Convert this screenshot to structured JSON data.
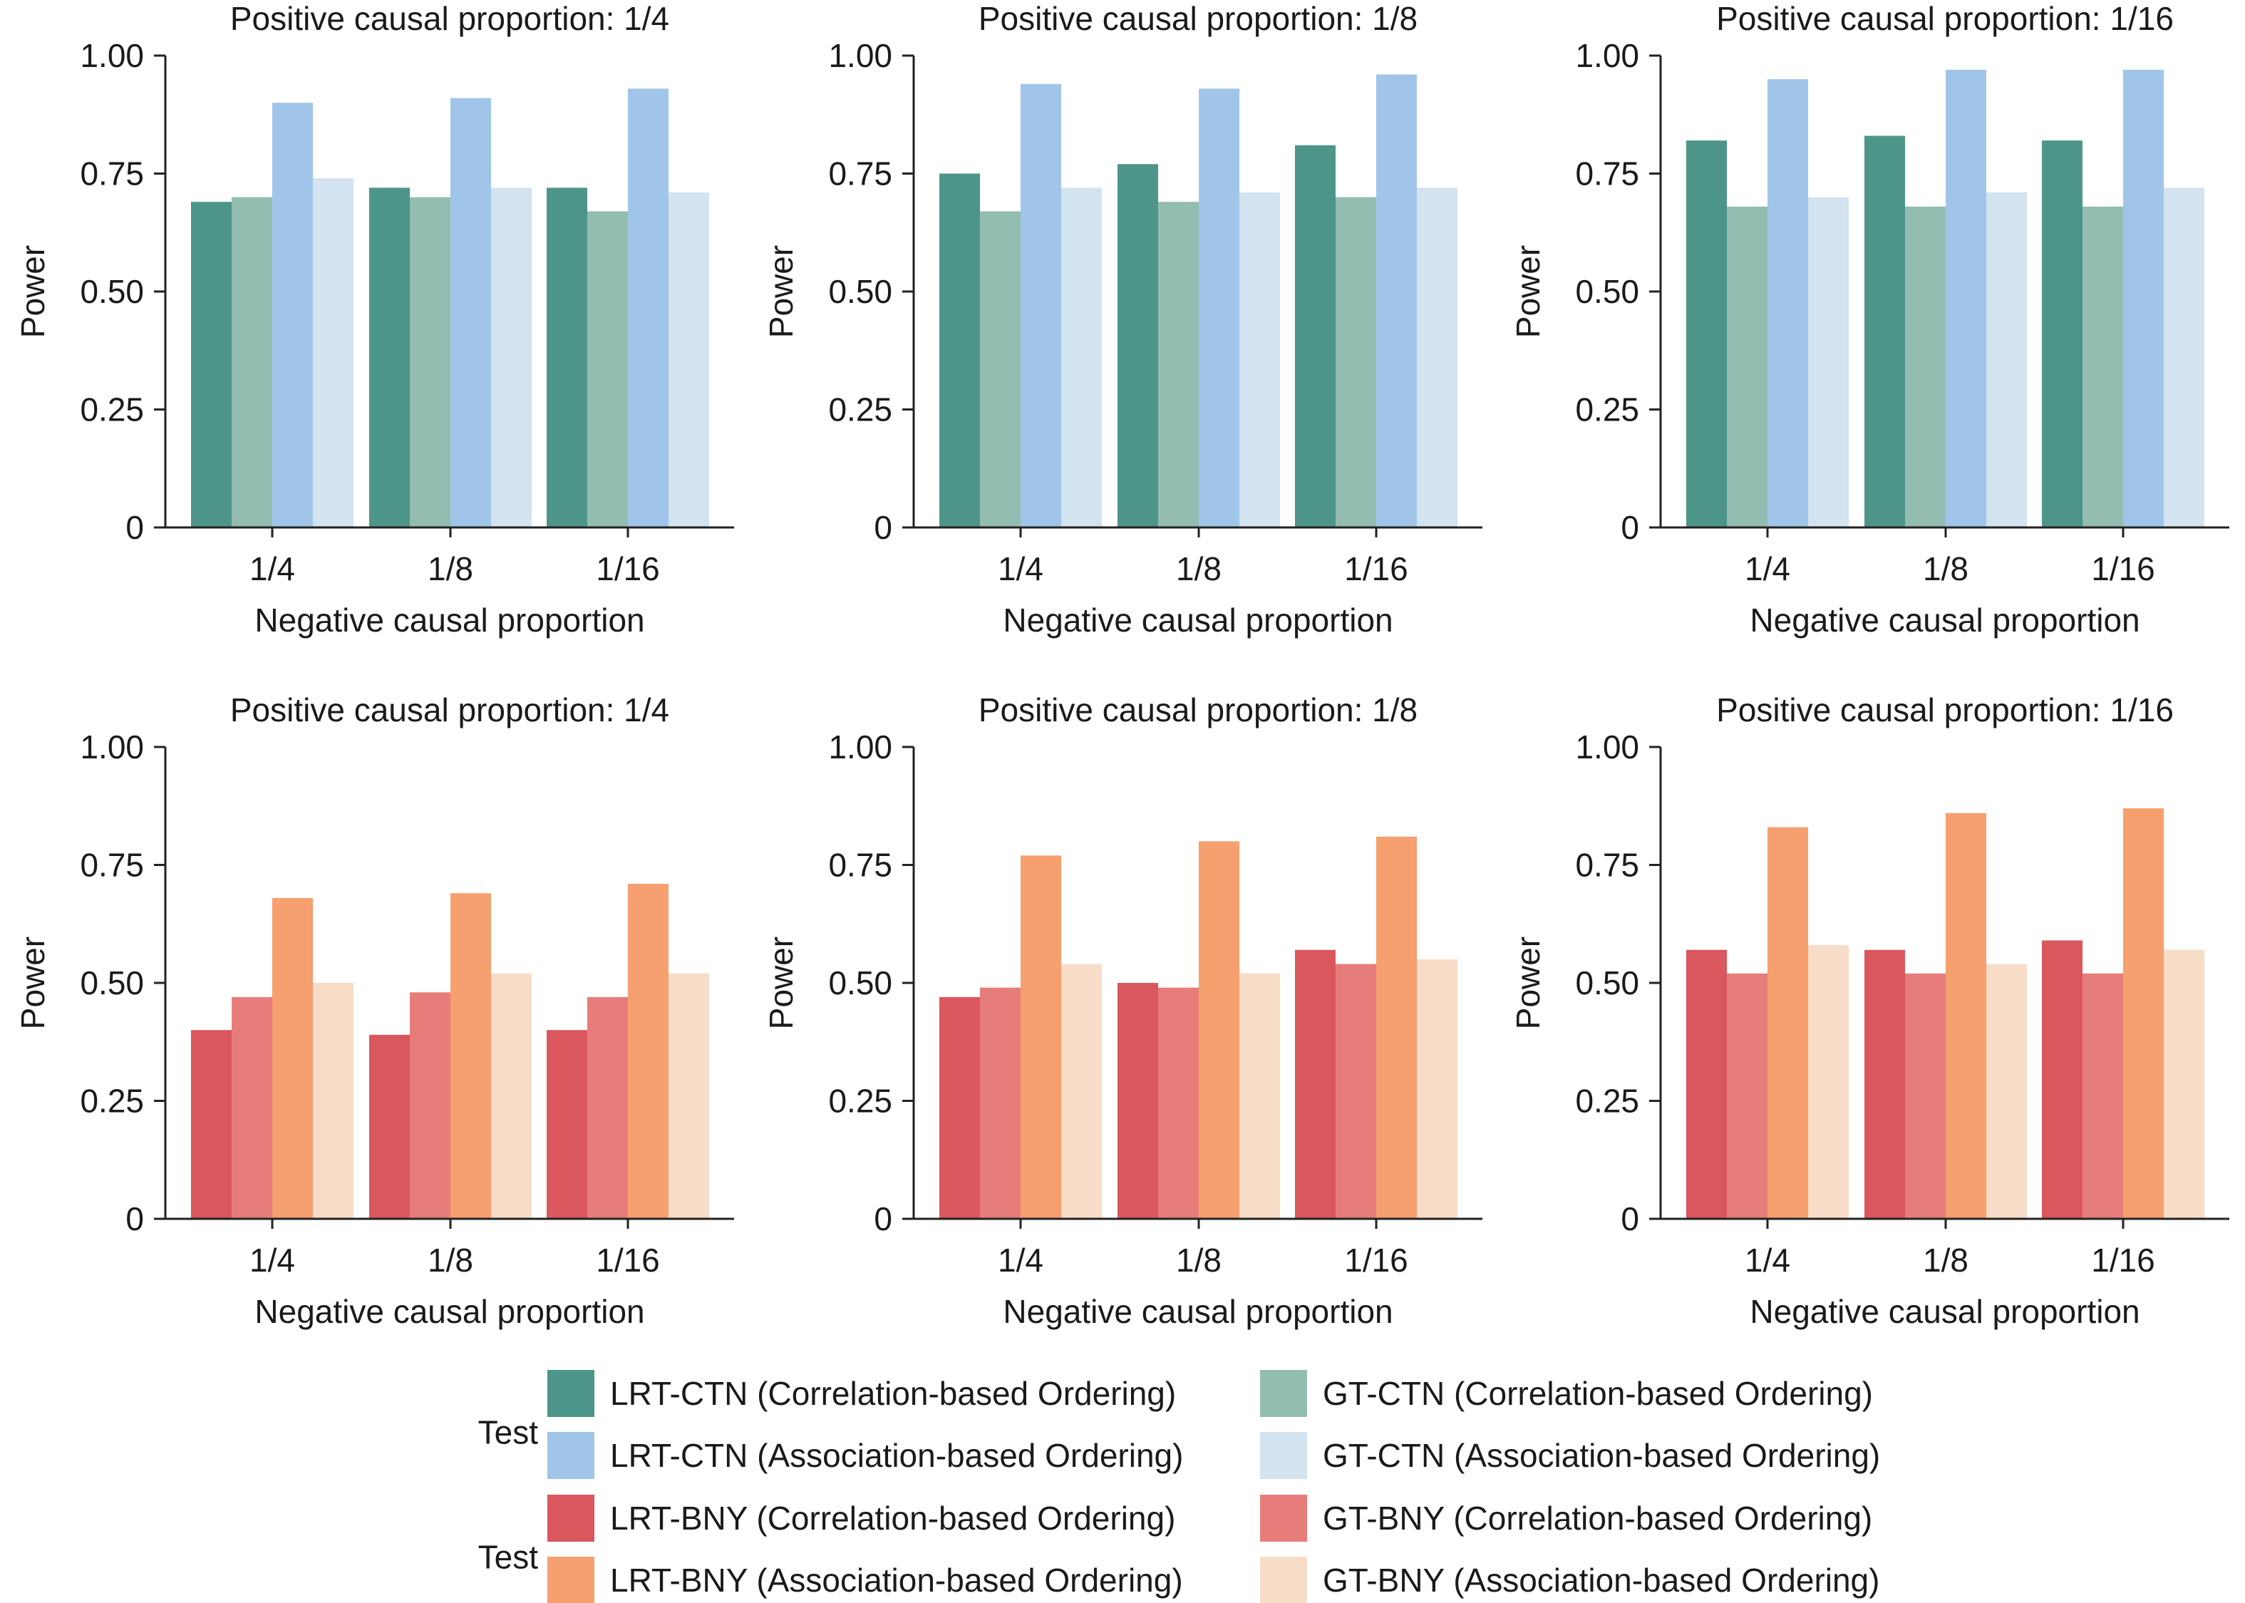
{
  "chart_data": [
    {
      "type": "bar",
      "title": "Positive causal proportion: 1/4",
      "xlabel": "Negative causal proportion",
      "ylabel": "Power",
      "ylim": [
        0,
        1
      ],
      "yticks": [
        "0",
        "0.25",
        "0.50",
        "0.75",
        "1.00"
      ],
      "categories": [
        "1/4",
        "1/8",
        "1/16"
      ],
      "series": [
        {
          "name": "LRT-CTN (Correlation-based Ordering)",
          "color": "#4d9588",
          "values": [
            0.69,
            0.72,
            0.72
          ]
        },
        {
          "name": "GT-CTN (Correlation-based Ordering)",
          "color": "#94bdb1",
          "values": [
            0.7,
            0.7,
            0.67
          ]
        },
        {
          "name": "LRT-CTN (Association-based Ordering)",
          "color": "#a0c5e9",
          "values": [
            0.9,
            0.91,
            0.93
          ]
        },
        {
          "name": "GT-CTN (Association-based Ordering)",
          "color": "#d3e3ef",
          "values": [
            0.74,
            0.72,
            0.71
          ]
        }
      ]
    },
    {
      "type": "bar",
      "title": "Positive causal proportion: 1/8",
      "xlabel": "Negative causal proportion",
      "ylabel": "Power",
      "ylim": [
        0,
        1
      ],
      "yticks": [
        "0",
        "0.25",
        "0.50",
        "0.75",
        "1.00"
      ],
      "categories": [
        "1/4",
        "1/8",
        "1/16"
      ],
      "series": [
        {
          "name": "LRT-CTN (Correlation-based Ordering)",
          "color": "#4d9588",
          "values": [
            0.75,
            0.77,
            0.81
          ]
        },
        {
          "name": "GT-CTN (Correlation-based Ordering)",
          "color": "#94bdb1",
          "values": [
            0.67,
            0.69,
            0.7
          ]
        },
        {
          "name": "LRT-CTN (Association-based Ordering)",
          "color": "#a0c5e9",
          "values": [
            0.94,
            0.93,
            0.96
          ]
        },
        {
          "name": "GT-CTN (Association-based Ordering)",
          "color": "#d3e3ef",
          "values": [
            0.72,
            0.71,
            0.72
          ]
        }
      ]
    },
    {
      "type": "bar",
      "title": "Positive causal proportion: 1/16",
      "xlabel": "Negative causal proportion",
      "ylabel": "Power",
      "ylim": [
        0,
        1
      ],
      "yticks": [
        "0",
        "0.25",
        "0.50",
        "0.75",
        "1.00"
      ],
      "categories": [
        "1/4",
        "1/8",
        "1/16"
      ],
      "series": [
        {
          "name": "LRT-CTN (Correlation-based Ordering)",
          "color": "#4d9588",
          "values": [
            0.82,
            0.83,
            0.82
          ]
        },
        {
          "name": "GT-CTN (Correlation-based Ordering)",
          "color": "#94bdb1",
          "values": [
            0.68,
            0.68,
            0.68
          ]
        },
        {
          "name": "LRT-CTN (Association-based Ordering)",
          "color": "#a0c5e9",
          "values": [
            0.95,
            0.97,
            0.97
          ]
        },
        {
          "name": "GT-CTN (Association-based Ordering)",
          "color": "#d3e3ef",
          "values": [
            0.7,
            0.71,
            0.72
          ]
        }
      ]
    },
    {
      "type": "bar",
      "title": "Positive causal proportion: 1/4",
      "xlabel": "Negative causal proportion",
      "ylabel": "Power",
      "ylim": [
        0,
        1
      ],
      "yticks": [
        "0",
        "0.25",
        "0.50",
        "0.75",
        "1.00"
      ],
      "categories": [
        "1/4",
        "1/8",
        "1/16"
      ],
      "series": [
        {
          "name": "LRT-BNY (Correlation-based Ordering)",
          "color": "#d9575d",
          "values": [
            0.4,
            0.39,
            0.4
          ]
        },
        {
          "name": "GT-BNY (Correlation-based Ordering)",
          "color": "#e77d7b",
          "values": [
            0.47,
            0.48,
            0.47
          ]
        },
        {
          "name": "LRT-BNY (Association-based Ordering)",
          "color": "#f69f6f",
          "values": [
            0.68,
            0.69,
            0.71
          ]
        },
        {
          "name": "GT-BNY (Association-based Ordering)",
          "color": "#f7dcc8",
          "values": [
            0.5,
            0.52,
            0.52
          ]
        }
      ]
    },
    {
      "type": "bar",
      "title": "Positive causal proportion: 1/8",
      "xlabel": "Negative causal proportion",
      "ylabel": "Power",
      "ylim": [
        0,
        1
      ],
      "yticks": [
        "0",
        "0.25",
        "0.50",
        "0.75",
        "1.00"
      ],
      "categories": [
        "1/4",
        "1/8",
        "1/16"
      ],
      "series": [
        {
          "name": "LRT-BNY (Correlation-based Ordering)",
          "color": "#d9575d",
          "values": [
            0.47,
            0.5,
            0.57
          ]
        },
        {
          "name": "GT-BNY (Correlation-based Ordering)",
          "color": "#e77d7b",
          "values": [
            0.49,
            0.49,
            0.54
          ]
        },
        {
          "name": "LRT-BNY (Association-based Ordering)",
          "color": "#f69f6f",
          "values": [
            0.77,
            0.8,
            0.81
          ]
        },
        {
          "name": "GT-BNY (Association-based Ordering)",
          "color": "#f7dcc8",
          "values": [
            0.54,
            0.52,
            0.55
          ]
        }
      ]
    },
    {
      "type": "bar",
      "title": "Positive causal proportion: 1/16",
      "xlabel": "Negative causal proportion",
      "ylabel": "Power",
      "ylim": [
        0,
        1
      ],
      "yticks": [
        "0",
        "0.25",
        "0.50",
        "0.75",
        "1.00"
      ],
      "categories": [
        "1/4",
        "1/8",
        "1/16"
      ],
      "series": [
        {
          "name": "LRT-BNY (Correlation-based Ordering)",
          "color": "#d9575d",
          "values": [
            0.57,
            0.57,
            0.59
          ]
        },
        {
          "name": "GT-BNY (Correlation-based Ordering)",
          "color": "#e77d7b",
          "values": [
            0.52,
            0.52,
            0.52
          ]
        },
        {
          "name": "LRT-BNY (Association-based Ordering)",
          "color": "#f69f6f",
          "values": [
            0.83,
            0.86,
            0.87
          ]
        },
        {
          "name": "GT-BNY (Association-based Ordering)",
          "color": "#f7dcc8",
          "values": [
            0.58,
            0.54,
            0.57
          ]
        }
      ]
    }
  ],
  "legend": [
    {
      "title": "Test",
      "items": [
        {
          "label": "LRT-CTN (Correlation-based Ordering)",
          "color": "#4d9588"
        },
        {
          "label": "GT-CTN (Correlation-based Ordering)",
          "color": "#94bdb1"
        },
        {
          "label": "LRT-CTN (Association-based Ordering)",
          "color": "#a0c5e9"
        },
        {
          "label": "GT-CTN (Association-based Ordering)",
          "color": "#d3e3ef"
        }
      ]
    },
    {
      "title": "Test",
      "items": [
        {
          "label": "LRT-BNY (Correlation-based Ordering)",
          "color": "#d9575d"
        },
        {
          "label": "GT-BNY (Correlation-based Ordering)",
          "color": "#e77d7b"
        },
        {
          "label": "LRT-BNY (Association-based Ordering)",
          "color": "#f69f6f"
        },
        {
          "label": "GT-BNY (Association-based Ordering)",
          "color": "#f7dcc8"
        }
      ]
    }
  ]
}
